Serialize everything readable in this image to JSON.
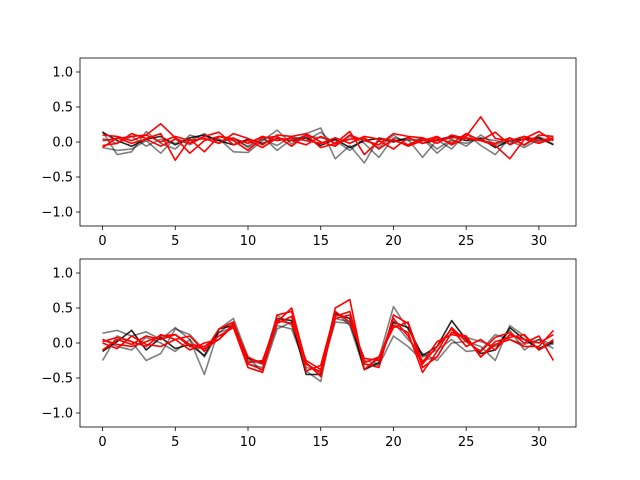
{
  "colors": {
    "gray": "#000000",
    "red": "#ff0000"
  },
  "chart_data": [
    {
      "type": "line",
      "xlim": [
        -1.55,
        32.55
      ],
      "ylim": [
        -1.2,
        1.2
      ],
      "xticks": [
        0,
        5,
        10,
        15,
        20,
        25,
        30
      ],
      "yticks": [
        1.0,
        0.5,
        0.0,
        -0.5,
        -1.0
      ],
      "xtick_labels": [
        "0",
        "5",
        "10",
        "15",
        "20",
        "25",
        "30"
      ],
      "ytick_labels": [
        "1.0",
        "0.5",
        "0.0",
        "−0.5",
        "−1.0"
      ],
      "x": [
        0,
        1,
        2,
        3,
        4,
        5,
        6,
        7,
        8,
        9,
        10,
        11,
        12,
        13,
        14,
        15,
        16,
        17,
        18,
        19,
        20,
        21,
        22,
        23,
        24,
        25,
        26,
        27,
        28,
        29,
        30,
        31
      ],
      "series": [
        {
          "color_key": "gray",
          "opacity": 0.5,
          "values": [
            0.15,
            -0.18,
            -0.14,
            0.15,
            -0.02,
            -0.1,
            0.1,
            0.04,
            0.05,
            -0.14,
            -0.15,
            0.02,
            0.17,
            -0.03,
            0.12,
            0.2,
            -0.24,
            -0.05,
            -0.3,
            0.06,
            0.02,
            0.04,
            -0.22,
            0.03,
            -0.1,
            0.12,
            -0.05,
            -0.18,
            0.06,
            -0.05,
            0.08,
            -0.03
          ]
        },
        {
          "color_key": "gray",
          "opacity": 0.5,
          "values": [
            0.05,
            -0.02,
            0.08,
            -0.06,
            0.04,
            -0.02,
            0.02,
            0.12,
            -0.02,
            0.06,
            -0.08,
            0.04,
            -0.05,
            0.08,
            0.02,
            0.14,
            -0.04,
            0.08,
            -0.02,
            -0.22,
            0.06,
            0.02,
            0.05,
            -0.16,
            0.02,
            -0.02,
            0.06,
            0.02,
            -0.02,
            0.08,
            0.0,
            0.05
          ]
        },
        {
          "color_key": "gray",
          "opacity": 0.85,
          "values": [
            0.14,
            0.02,
            -0.06,
            0.04,
            0.08,
            -0.04,
            0.06,
            0.1,
            0.02,
            -0.04,
            0.04,
            -0.02,
            0.05,
            0.02,
            0.06,
            -0.05,
            0.04,
            -0.08,
            0.02,
            0.05,
            0.0,
            0.06,
            -0.02,
            0.03,
            0.08,
            0.02,
            0.05,
            -0.08,
            0.02,
            0.04,
            0.06,
            -0.04
          ]
        },
        {
          "color_key": "gray",
          "opacity": 0.5,
          "values": [
            -0.08,
            -0.12,
            -0.1,
            0.02,
            -0.16,
            0.06,
            -0.04,
            0.08,
            0.02,
            0.04,
            -0.06,
            0.08,
            -0.12,
            0.04,
            0.08,
            0.06,
            0.02,
            -0.12,
            0.05,
            -0.08,
            0.1,
            -0.04,
            0.06,
            -0.1,
            0.04,
            -0.06,
            0.1,
            -0.04,
            0.02,
            -0.08,
            0.04,
            0.02
          ]
        },
        {
          "color_key": "red",
          "opacity": 1,
          "values": [
            0.1,
            0.08,
            0.02,
            0.1,
            0.26,
            0.06,
            -0.16,
            0.02,
            0.08,
            0.05,
            -0.02,
            0.08,
            0.02,
            0.06,
            0.02,
            -0.02,
            0.06,
            -0.02,
            0.08,
            0.04,
            0.02,
            -0.04,
            0.04,
            0.02,
            0.06,
            0.08,
            0.36,
            0.05,
            0.02,
            0.08,
            0.02,
            0.06
          ]
        },
        {
          "color_key": "red",
          "opacity": 1,
          "values": [
            -0.05,
            -0.02,
            0.12,
            0.05,
            0.12,
            -0.26,
            0.04,
            -0.14,
            0.08,
            0.02,
            -0.12,
            0.06,
            0.08,
            -0.06,
            0.1,
            -0.08,
            -0.02,
            0.15,
            -0.18,
            0.02,
            -0.1,
            0.06,
            -0.02,
            0.06,
            -0.02,
            0.12,
            0.02,
            -0.05,
            -0.24,
            0.04,
            -0.02,
            0.05
          ]
        },
        {
          "color_key": "red",
          "opacity": 1,
          "values": [
            0.02,
            0.05,
            0.08,
            0.1,
            0.0,
            0.08,
            0.02,
            0.05,
            -0.02,
            0.12,
            0.05,
            -0.04,
            0.1,
            0.08,
            0.12,
            0.0,
            -0.06,
            0.1,
            0.02,
            -0.04,
            0.12,
            0.08,
            0.06,
            -0.02,
            0.1,
            0.05,
            0.02,
            0.14,
            -0.04,
            0.05,
            0.15,
            0.02
          ]
        },
        {
          "color_key": "red",
          "opacity": 1,
          "values": [
            -0.08,
            0.06,
            -0.02,
            0.04,
            -0.06,
            0.04,
            -0.02,
            0.08,
            0.14,
            -0.04,
            0.02,
            -0.08,
            0.06,
            0.02,
            -0.04,
            0.08,
            -0.02,
            0.04,
            0.06,
            -0.1,
            0.04,
            -0.06,
            0.02,
            0.08,
            -0.04,
            0.06,
            0.02,
            -0.02,
            0.06,
            -0.04,
            0.1,
            0.08
          ]
        }
      ]
    },
    {
      "type": "line",
      "xlim": [
        -1.55,
        32.55
      ],
      "ylim": [
        -1.2,
        1.2
      ],
      "xticks": [
        0,
        5,
        10,
        15,
        20,
        25,
        30
      ],
      "yticks": [
        1.0,
        0.5,
        0.0,
        -0.5,
        -1.0
      ],
      "xtick_labels": [
        "0",
        "5",
        "10",
        "15",
        "20",
        "25",
        "30"
      ],
      "ytick_labels": [
        "1.0",
        "0.5",
        "0.0",
        "−0.5",
        "−1.0"
      ],
      "x": [
        0,
        1,
        2,
        3,
        4,
        5,
        6,
        7,
        8,
        9,
        10,
        11,
        12,
        13,
        14,
        15,
        16,
        17,
        18,
        19,
        20,
        21,
        22,
        23,
        24,
        25,
        26,
        27,
        28,
        29,
        30,
        31
      ],
      "series": [
        {
          "color_key": "gray",
          "opacity": 0.5,
          "values": [
            0.14,
            0.18,
            0.1,
            0.16,
            0.05,
            0.22,
            0.05,
            -0.45,
            0.2,
            0.35,
            -0.2,
            -0.42,
            0.2,
            0.3,
            -0.4,
            -0.55,
            0.45,
            0.25,
            -0.38,
            -0.22,
            0.52,
            0.2,
            -0.2,
            -0.1,
            0.05,
            -0.12,
            -0.1,
            0.12,
            0.05,
            -0.02,
            0.05,
            -0.08
          ]
        },
        {
          "color_key": "gray",
          "opacity": 0.5,
          "values": [
            -0.25,
            0.1,
            0.02,
            -0.25,
            -0.15,
            0.2,
            0.12,
            -0.1,
            0.15,
            0.3,
            -0.25,
            -0.3,
            0.4,
            0.25,
            -0.3,
            -0.45,
            0.35,
            0.3,
            -0.25,
            -0.3,
            0.3,
            0.05,
            -0.15,
            -0.25,
            0.0,
            0.02,
            -0.05,
            -0.25,
            0.25,
            0.1,
            -0.1,
            0.0
          ]
        },
        {
          "color_key": "gray",
          "opacity": 0.85,
          "values": [
            -0.12,
            0.02,
            0.18,
            -0.1,
            0.08,
            -0.08,
            -0.02,
            -0.18,
            0.2,
            0.25,
            -0.22,
            -0.28,
            0.35,
            0.32,
            -0.45,
            -0.45,
            0.42,
            0.35,
            -0.38,
            -0.28,
            0.3,
            0.22,
            -0.18,
            -0.05,
            0.32,
            0.05,
            -0.15,
            -0.1,
            0.22,
            0.05,
            -0.08,
            0.02
          ]
        },
        {
          "color_key": "gray",
          "opacity": 0.5,
          "values": [
            0.05,
            -0.05,
            -0.1,
            0.08,
            0.0,
            -0.12,
            0.05,
            -0.2,
            0.15,
            0.22,
            -0.3,
            -0.35,
            0.25,
            0.2,
            -0.35,
            -0.4,
            0.3,
            0.28,
            -0.3,
            -0.32,
            0.1,
            -0.05,
            -0.25,
            -0.2,
            0.15,
            0.08,
            0.02,
            -0.05,
            0.18,
            -0.1,
            0.05,
            -0.02
          ]
        },
        {
          "color_key": "red",
          "opacity": 1,
          "values": [
            0.05,
            -0.02,
            -0.05,
            0.02,
            0.1,
            0.12,
            -0.05,
            -0.08,
            0.05,
            0.28,
            -0.3,
            -0.38,
            0.3,
            0.5,
            -0.3,
            -0.42,
            0.5,
            0.62,
            -0.38,
            -0.2,
            0.25,
            0.15,
            -0.42,
            -0.12,
            0.22,
            0.02,
            -0.12,
            0.08,
            0.15,
            0.0,
            0.1,
            -0.25
          ]
        },
        {
          "color_key": "red",
          "opacity": 1,
          "values": [
            -0.1,
            0.05,
            -0.02,
            0.1,
            0.05,
            0.12,
            -0.02,
            -0.05,
            0.1,
            0.22,
            -0.35,
            -0.42,
            0.4,
            0.45,
            -0.28,
            -0.48,
            0.38,
            0.45,
            -0.3,
            -0.35,
            0.4,
            0.28,
            -0.35,
            -0.2,
            0.15,
            0.1,
            -0.2,
            0.02,
            0.08,
            0.12,
            -0.1,
            0.05
          ]
        },
        {
          "color_key": "red",
          "opacity": 1,
          "values": [
            0.02,
            0.08,
            0.02,
            -0.05,
            0.12,
            0.05,
            -0.1,
            0.0,
            0.05,
            0.25,
            -0.2,
            -0.3,
            0.28,
            0.38,
            -0.4,
            -0.32,
            0.45,
            0.3,
            -0.22,
            -0.25,
            0.35,
            0.1,
            -0.3,
            -0.05,
            0.2,
            -0.05,
            0.05,
            -0.1,
            0.12,
            0.05,
            0.0,
            0.12
          ]
        },
        {
          "color_key": "red",
          "opacity": 1,
          "values": [
            0.0,
            -0.08,
            0.1,
            -0.02,
            -0.05,
            0.05,
            0.1,
            -0.12,
            0.2,
            0.3,
            -0.28,
            -0.25,
            0.32,
            0.28,
            -0.25,
            -0.38,
            0.35,
            0.4,
            -0.28,
            -0.2,
            0.22,
            0.3,
            -0.28,
            0.02,
            0.12,
            0.08,
            -0.2,
            -0.02,
            0.05,
            -0.05,
            -0.05,
            0.18
          ]
        }
      ]
    }
  ]
}
